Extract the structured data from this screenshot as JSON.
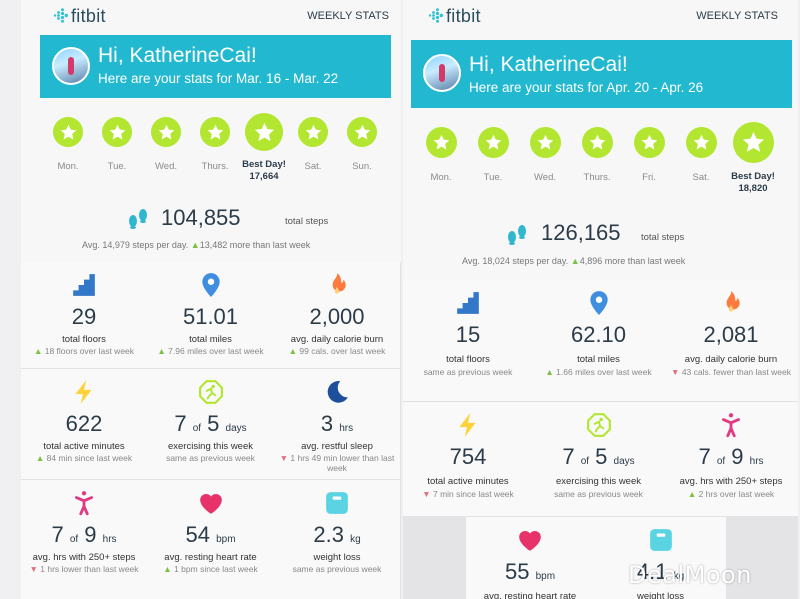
{
  "colors": {
    "banner": "#22b8cf",
    "star": "#b2e630",
    "up": "#7ac142",
    "down": "#e0707a",
    "floors": "#3277c8",
    "miles": "#3f8ee0",
    "flame": "#ff7a3d",
    "bolt": "#ffd23c",
    "exercise": "#b2e630",
    "moon": "#1e4f9c",
    "person": "#e03a80",
    "heart": "#e8336a",
    "scale": "#5ad3e3"
  },
  "left": {
    "logo": "fitbit",
    "weekly_stats": "WEEKLY STATS",
    "greeting": "Hi, KatherineCai!",
    "range": "Here are your stats for Mar. 16 - Mar. 22",
    "days": [
      {
        "label": "Mon."
      },
      {
        "label": "Tue."
      },
      {
        "label": "Wed."
      },
      {
        "label": "Thurs."
      },
      {
        "label": "Best Day!",
        "value": "17,664",
        "best": true
      },
      {
        "label": "Sat."
      },
      {
        "label": "Sun."
      }
    ],
    "steps": {
      "value": "104,855",
      "label": "total steps",
      "avg": "Avg. 14,979 steps per day.",
      "delta": "13,482 more than last week"
    },
    "tiles": [
      {
        "icon": "stairs-icon",
        "value": "29",
        "unit": "",
        "label": "total floors",
        "sub": "18 floors over last week",
        "trend": "up"
      },
      {
        "icon": "location-pin-icon",
        "value": "51.01",
        "unit": "",
        "label": "total miles",
        "sub": "7.96 miles over last week",
        "trend": "up"
      },
      {
        "icon": "flame-icon",
        "value": "2,000",
        "unit": "",
        "label": "avg. daily calorie burn",
        "sub": "99 cals. over last week",
        "trend": "up"
      },
      {
        "icon": "lightning-icon",
        "value": "622",
        "unit": "",
        "label": "total active minutes",
        "sub": "84 min since last week",
        "trend": "up"
      },
      {
        "icon": "exercise-icon",
        "value": "7",
        "of": "of",
        "value2": "5",
        "unit": "days",
        "label": "exercising this week",
        "sub": "same as previous week",
        "trend": ""
      },
      {
        "icon": "moon-icon",
        "value": "3",
        "unit": "hrs",
        "label": "avg. restful sleep",
        "sub": "1 hrs 49 min lower than last week",
        "trend": "down"
      },
      {
        "icon": "active-person-icon",
        "value": "7",
        "of": "of",
        "value2": "9",
        "unit": "hrs",
        "label": "avg. hrs with 250+ steps",
        "sub": "1 hrs lower than last week",
        "trend": "down"
      },
      {
        "icon": "heart-icon",
        "value": "54",
        "unit": "bpm",
        "label": "avg. resting heart rate",
        "sub": "1 bpm since last week",
        "trend": "up"
      },
      {
        "icon": "scale-icon",
        "value": "2.3",
        "unit": "kg",
        "label": "weight loss",
        "sub": "same as previous week",
        "trend": ""
      }
    ]
  },
  "right": {
    "logo": "fitbit",
    "weekly_stats": "WEEKLY STATS",
    "greeting": "Hi, KatherineCai!",
    "range": "Here are your stats for Apr. 20 - Apr. 26",
    "days": [
      {
        "label": "Mon."
      },
      {
        "label": "Tue."
      },
      {
        "label": "Wed."
      },
      {
        "label": "Thurs."
      },
      {
        "label": "Fri."
      },
      {
        "label": "Sat."
      },
      {
        "label": "Best Day!",
        "value": "18,820",
        "best": true
      }
    ],
    "steps": {
      "value": "126,165",
      "label": "total steps",
      "avg": "Avg. 18,024 steps per day.",
      "delta": "4,896 more than last week"
    },
    "tiles": [
      {
        "icon": "stairs-icon",
        "value": "15",
        "unit": "",
        "label": "total floors",
        "sub": "same as previous week",
        "trend": ""
      },
      {
        "icon": "location-pin-icon",
        "value": "62.10",
        "unit": "",
        "label": "total miles",
        "sub": "1.66 miles over last week",
        "trend": "up"
      },
      {
        "icon": "flame-icon",
        "value": "2,081",
        "unit": "",
        "label": "avg. daily calorie burn",
        "sub": "43 cals. fewer than last week",
        "trend": "down"
      },
      {
        "icon": "lightning-icon",
        "value": "754",
        "unit": "",
        "label": "total active minutes",
        "sub": "7 min since last week",
        "trend": "down"
      },
      {
        "icon": "exercise-icon",
        "value": "7",
        "of": "of",
        "value2": "5",
        "unit": "days",
        "label": "exercising this week",
        "sub": "same as previous week",
        "trend": ""
      },
      {
        "icon": "active-person-icon",
        "value": "7",
        "of": "of",
        "value2": "9",
        "unit": "hrs",
        "label": "avg. hrs with 250+ steps",
        "sub": "2 hrs over last week",
        "trend": "up"
      },
      {
        "icon": "heart-icon",
        "value": "55",
        "unit": "bpm",
        "label": "avg. resting heart rate",
        "sub": "",
        "trend": ""
      },
      {
        "icon": "scale-icon",
        "value": "4.1",
        "unit": "kg",
        "label": "weight loss",
        "sub": "",
        "trend": ""
      }
    ]
  },
  "watermark": "DealMoon"
}
